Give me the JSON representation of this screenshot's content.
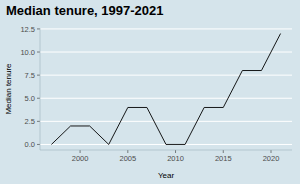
{
  "chart_data": {
    "type": "line",
    "title": "Median tenure, 1997-2021",
    "x_label": "Year",
    "y_label": "Median tenure",
    "x": [
      1997,
      1999,
      2001,
      2003,
      2005,
      2007,
      2009,
      2011,
      2013,
      2015,
      2017,
      2019,
      2021
    ],
    "values": [
      0,
      2,
      2,
      0,
      4,
      4,
      0,
      0,
      4,
      4,
      8,
      8,
      12
    ],
    "color": "#000000",
    "xlim": [
      1995.8,
      2022.2
    ],
    "xticks": [
      2000,
      2005,
      2010,
      2015,
      2020
    ],
    "ylim": [
      -0.6,
      12.6
    ],
    "yticks": [
      {
        "value": 0,
        "label": "0.0"
      },
      2.5,
      {
        "value": 5,
        "label": "5.0"
      },
      7.5,
      {
        "value": 10,
        "label": "10.0"
      },
      12.5
    ],
    "grid": true
  }
}
